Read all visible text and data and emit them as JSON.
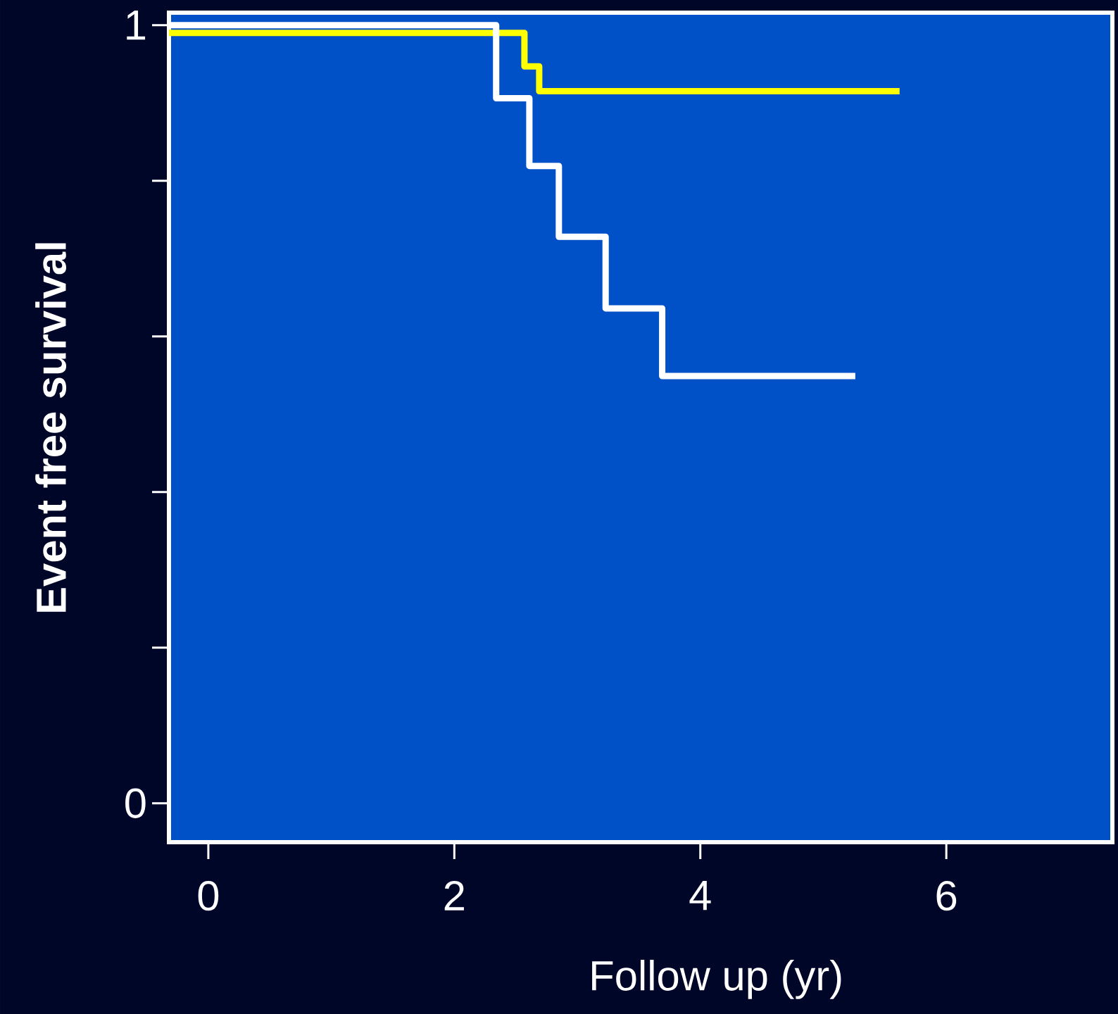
{
  "chart_data": {
    "type": "step",
    "xlabel": "Follow up (yr)",
    "ylabel": "Event free survival",
    "xlim": [
      -0.32,
      7.35
    ],
    "ylim": [
      -0.05,
      1.016
    ],
    "xticks": [
      0,
      2,
      4,
      6
    ],
    "yticks": [
      0,
      {
        "value": 0.2,
        "label": null
      },
      {
        "value": 0.4,
        "label": null
      },
      {
        "value": 0.6,
        "label": null
      },
      {
        "value": 0.8,
        "label": null
      },
      1
    ],
    "grid": false,
    "legend": false,
    "marker": "none",
    "line_style": "solid",
    "series": [
      {
        "color": "#ffff00",
        "x": [
          -0.32,
          2.57,
          2.69,
          5.62
        ],
        "values": [
          0.99,
          0.947,
          0.915,
          0.915
        ]
      },
      {
        "color": "#ffffff",
        "x": [
          -0.32,
          2.34,
          2.61,
          2.85,
          3.23,
          3.69,
          5.26
        ],
        "values": [
          1,
          0.906,
          0.819,
          0.728,
          0.636,
          0.549,
          0.549
        ]
      }
    ]
  }
}
